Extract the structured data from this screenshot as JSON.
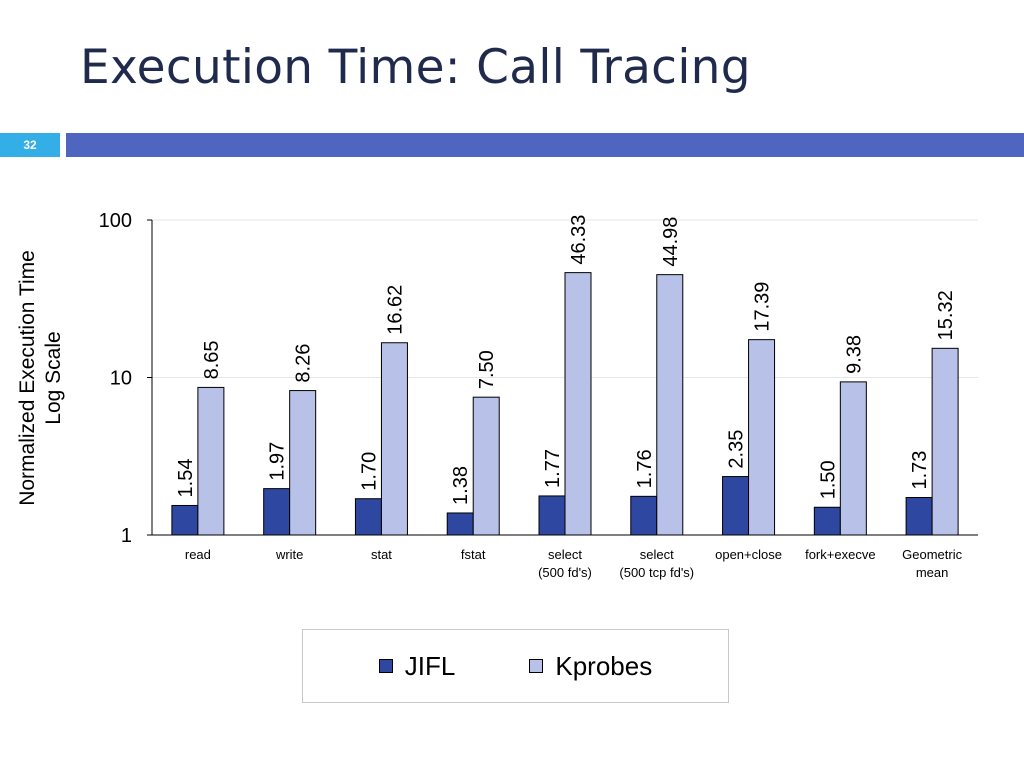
{
  "slide": {
    "title": "Execution Time: Call Tracing",
    "page_number": "32"
  },
  "colors": {
    "title_text": "#1f2a4d",
    "badge": "#33aee6",
    "bar": "#4e66c0"
  },
  "chart_data": {
    "type": "bar",
    "ylabel_lines": [
      "Normalized Execution Time",
      "Log Scale"
    ],
    "xlabel": "",
    "y_scale": "log",
    "ylim": [
      1,
      100
    ],
    "y_ticks": [
      {
        "value": 1,
        "label": "1"
      },
      {
        "value": 10,
        "label": "10"
      },
      {
        "value": 100,
        "label": "100"
      }
    ],
    "grid": true,
    "legend_position": "bottom",
    "categories": [
      [
        "read"
      ],
      [
        "write"
      ],
      [
        "stat"
      ],
      [
        "fstat"
      ],
      [
        "select",
        "(500 fd's)"
      ],
      [
        "select",
        "(500 tcp fd's)"
      ],
      [
        "open+close"
      ],
      [
        "fork+execve"
      ],
      [
        "Geometric",
        "mean"
      ]
    ],
    "series": [
      {
        "name": "JIFL",
        "color": "#2e47a0",
        "values": [
          1.54,
          1.97,
          1.7,
          1.38,
          1.77,
          1.76,
          2.35,
          1.5,
          1.73
        ],
        "labels": [
          "1.54",
          "1.97",
          "1.70",
          "1.38",
          "1.77",
          "1.76",
          "2.35",
          "1.50",
          "1.73"
        ]
      },
      {
        "name": "Kprobes",
        "color": "#b8c2e8",
        "values": [
          8.65,
          8.26,
          16.62,
          7.5,
          46.33,
          44.98,
          17.39,
          9.38,
          15.32
        ],
        "labels": [
          "8.65",
          "8.26",
          "16.62",
          "7.50",
          "46.33",
          "44.98",
          "17.39",
          "9.38",
          "15.32"
        ]
      }
    ]
  }
}
